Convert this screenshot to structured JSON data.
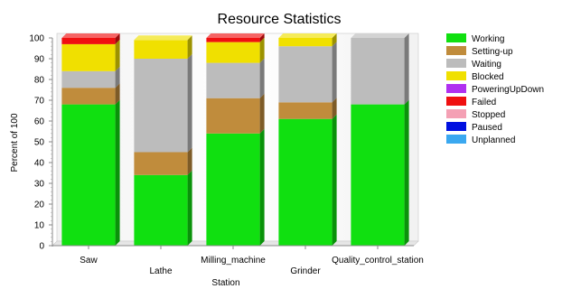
{
  "chart_data": {
    "type": "bar",
    "stacked": true,
    "title": "Resource Statistics",
    "xlabel": "Station",
    "ylabel": "Percent of 100",
    "ylim": [
      0,
      100
    ],
    "yticks": [
      0,
      10,
      20,
      30,
      40,
      50,
      60,
      70,
      80,
      90,
      100
    ],
    "grid": false,
    "legend_position": "right",
    "categories": [
      "Saw",
      "Lathe",
      "Milling_machine",
      "Grinder",
      "Quality_control_station"
    ],
    "series": [
      {
        "name": "Working",
        "color": "#10e010",
        "values": [
          68,
          34,
          54,
          61,
          68
        ]
      },
      {
        "name": "Setting-up",
        "color": "#c08c3c",
        "values": [
          8,
          11,
          17,
          8,
          0
        ]
      },
      {
        "name": "Waiting",
        "color": "#bcbcbc",
        "values": [
          8,
          45,
          17,
          27,
          32
        ]
      },
      {
        "name": "Blocked",
        "color": "#f0e000",
        "values": [
          13,
          9,
          10,
          4,
          0
        ]
      },
      {
        "name": "PoweringUpDown",
        "color": "#b030f0",
        "values": [
          0,
          0,
          0,
          0,
          0
        ]
      },
      {
        "name": "Failed",
        "color": "#f01010",
        "values": [
          3,
          0,
          2,
          0,
          0
        ]
      },
      {
        "name": "Stopped",
        "color": "#f4a0b4",
        "values": [
          0,
          0,
          0,
          0,
          0
        ]
      },
      {
        "name": "Paused",
        "color": "#0010e0",
        "values": [
          0,
          0,
          0,
          0,
          0
        ]
      },
      {
        "name": "Unplanned",
        "color": "#3aa8f0",
        "values": [
          0,
          0,
          0,
          0,
          0
        ]
      }
    ]
  }
}
